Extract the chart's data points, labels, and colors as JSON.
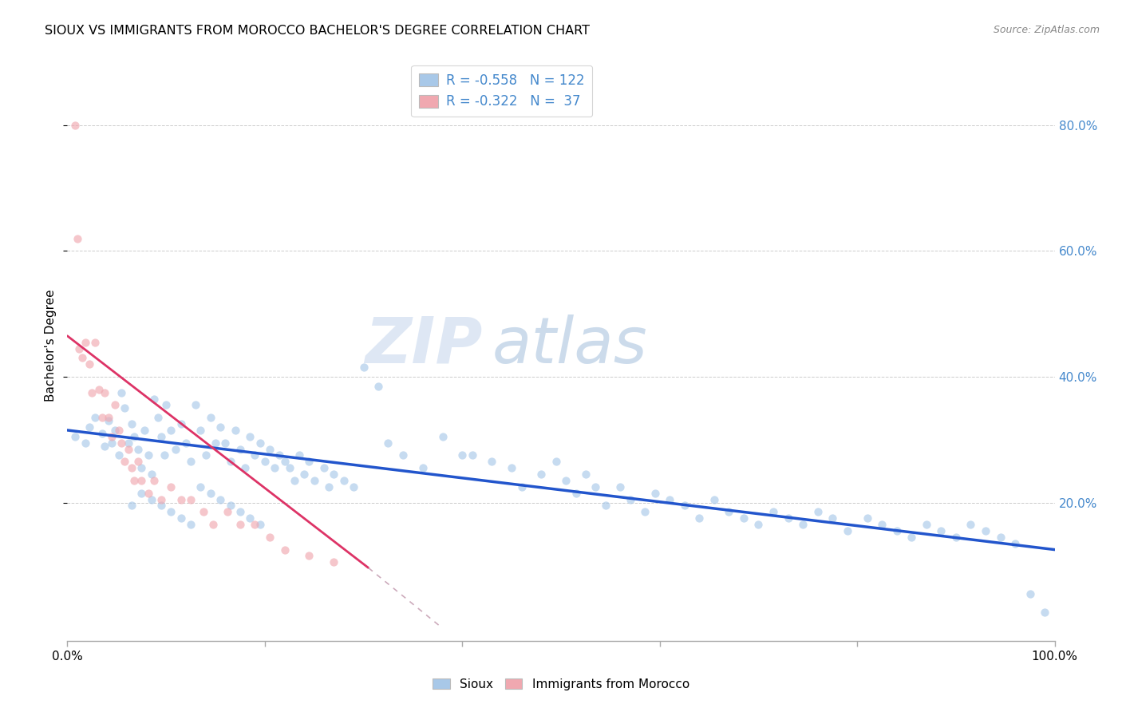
{
  "title": "SIOUX VS IMMIGRANTS FROM MOROCCO BACHELOR'S DEGREE CORRELATION CHART",
  "source": "Source: ZipAtlas.com",
  "ylabel": "Bachelor's Degree",
  "watermark_zip": "ZIP",
  "watermark_atlas": "atlas",
  "legend_blue_label": "R = -0.558   N = 122",
  "legend_pink_label": "R = -0.322   N =  37",
  "blue_color": "#a8c8e8",
  "pink_color": "#f0a8b0",
  "trendline_blue_color": "#2255cc",
  "trendline_pink_color": "#dd3366",
  "trendline_pink_dash_color": "#ccaabb",
  "axis_label_color": "#4488cc",
  "right_tick_color": "#4488cc",
  "grid_color": "#cccccc",
  "background_color": "#ffffff",
  "xlim": [
    0.0,
    1.0
  ],
  "ylim": [
    -0.02,
    0.92
  ],
  "scatter_size": 55,
  "scatter_alpha": 0.65,
  "trendline_blue_x0": 0.0,
  "trendline_blue_y0": 0.315,
  "trendline_blue_x1": 1.0,
  "trendline_blue_y1": 0.125,
  "trendline_pink_x0": 0.0,
  "trendline_pink_y0": 0.465,
  "trendline_pink_solid_x1": 0.305,
  "trendline_pink_solid_y1": 0.096,
  "trendline_pink_dash_x1": 0.38,
  "trendline_pink_dash_y1": 0.0,
  "bottom_legend_labels": [
    "Sioux",
    "Immigrants from Morocco"
  ],
  "blue_x": [
    0.008,
    0.018,
    0.022,
    0.028,
    0.035,
    0.038,
    0.042,
    0.045,
    0.048,
    0.052,
    0.055,
    0.058,
    0.062,
    0.065,
    0.068,
    0.072,
    0.075,
    0.078,
    0.082,
    0.085,
    0.088,
    0.092,
    0.095,
    0.098,
    0.1,
    0.105,
    0.11,
    0.115,
    0.12,
    0.125,
    0.13,
    0.135,
    0.14,
    0.145,
    0.15,
    0.155,
    0.16,
    0.165,
    0.17,
    0.175,
    0.18,
    0.185,
    0.19,
    0.195,
    0.2,
    0.205,
    0.21,
    0.215,
    0.22,
    0.225,
    0.23,
    0.235,
    0.24,
    0.245,
    0.25,
    0.26,
    0.265,
    0.27,
    0.28,
    0.29,
    0.3,
    0.315,
    0.325,
    0.34,
    0.36,
    0.38,
    0.4,
    0.41,
    0.43,
    0.45,
    0.46,
    0.48,
    0.495,
    0.505,
    0.515,
    0.525,
    0.535,
    0.545,
    0.56,
    0.57,
    0.585,
    0.595,
    0.61,
    0.625,
    0.64,
    0.655,
    0.67,
    0.685,
    0.7,
    0.715,
    0.73,
    0.745,
    0.76,
    0.775,
    0.79,
    0.81,
    0.825,
    0.84,
    0.855,
    0.87,
    0.885,
    0.9,
    0.915,
    0.93,
    0.945,
    0.96,
    0.975,
    0.99,
    0.065,
    0.075,
    0.085,
    0.095,
    0.105,
    0.115,
    0.125,
    0.135,
    0.145,
    0.155,
    0.165,
    0.175,
    0.185,
    0.195
  ],
  "blue_y": [
    0.305,
    0.295,
    0.32,
    0.335,
    0.31,
    0.29,
    0.33,
    0.295,
    0.315,
    0.275,
    0.375,
    0.35,
    0.295,
    0.325,
    0.305,
    0.285,
    0.255,
    0.315,
    0.275,
    0.245,
    0.365,
    0.335,
    0.305,
    0.275,
    0.355,
    0.315,
    0.285,
    0.325,
    0.295,
    0.265,
    0.355,
    0.315,
    0.275,
    0.335,
    0.295,
    0.32,
    0.295,
    0.265,
    0.315,
    0.285,
    0.255,
    0.305,
    0.275,
    0.295,
    0.265,
    0.285,
    0.255,
    0.275,
    0.265,
    0.255,
    0.235,
    0.275,
    0.245,
    0.265,
    0.235,
    0.255,
    0.225,
    0.245,
    0.235,
    0.225,
    0.415,
    0.385,
    0.295,
    0.275,
    0.255,
    0.305,
    0.275,
    0.275,
    0.265,
    0.255,
    0.225,
    0.245,
    0.265,
    0.235,
    0.215,
    0.245,
    0.225,
    0.195,
    0.225,
    0.205,
    0.185,
    0.215,
    0.205,
    0.195,
    0.175,
    0.205,
    0.185,
    0.175,
    0.165,
    0.185,
    0.175,
    0.165,
    0.185,
    0.175,
    0.155,
    0.175,
    0.165,
    0.155,
    0.145,
    0.165,
    0.155,
    0.145,
    0.165,
    0.155,
    0.145,
    0.135,
    0.055,
    0.025,
    0.195,
    0.215,
    0.205,
    0.195,
    0.185,
    0.175,
    0.165,
    0.225,
    0.215,
    0.205,
    0.195,
    0.185,
    0.175,
    0.165
  ],
  "pink_x": [
    0.008,
    0.01,
    0.012,
    0.015,
    0.018,
    0.022,
    0.025,
    0.028,
    0.032,
    0.035,
    0.038,
    0.042,
    0.045,
    0.048,
    0.052,
    0.055,
    0.058,
    0.062,
    0.065,
    0.068,
    0.072,
    0.075,
    0.082,
    0.088,
    0.095,
    0.105,
    0.115,
    0.125,
    0.138,
    0.148,
    0.162,
    0.175,
    0.19,
    0.205,
    0.22,
    0.245,
    0.27
  ],
  "pink_y": [
    0.8,
    0.62,
    0.445,
    0.43,
    0.455,
    0.42,
    0.375,
    0.455,
    0.38,
    0.335,
    0.375,
    0.335,
    0.305,
    0.355,
    0.315,
    0.295,
    0.265,
    0.285,
    0.255,
    0.235,
    0.265,
    0.235,
    0.215,
    0.235,
    0.205,
    0.225,
    0.205,
    0.205,
    0.185,
    0.165,
    0.185,
    0.165,
    0.165,
    0.145,
    0.125,
    0.115,
    0.105
  ]
}
